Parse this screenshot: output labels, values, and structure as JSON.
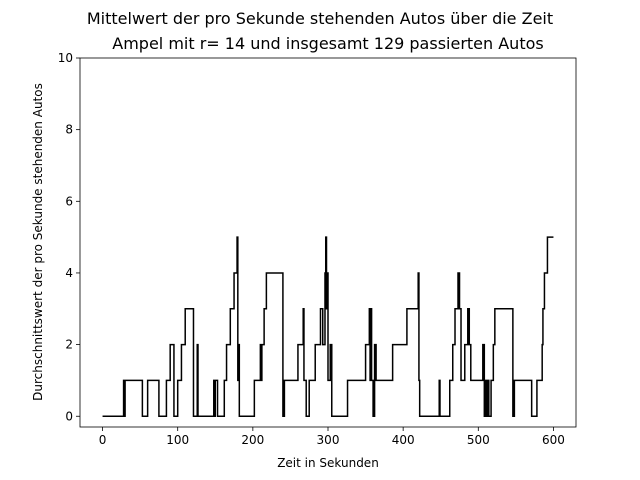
{
  "chart_data": {
    "type": "line",
    "title": "Mittelwert der pro Sekunde stehenden Autos über die Zeit",
    "subtitle": "Ampel mit r= 14 und insgesamt 129 passierten Autos",
    "xlabel": "Zeit in Sekunden",
    "ylabel": "Durchschnittswert der pro Sekunde stehenden Autos",
    "xlim": [
      -30,
      630
    ],
    "ylim": [
      -0.3,
      10
    ],
    "xticks": [
      0,
      100,
      200,
      300,
      400,
      500,
      600
    ],
    "yticks": [
      0,
      2,
      4,
      6,
      8,
      10
    ],
    "step": "post",
    "color": "#000000",
    "grid": false,
    "x": [
      0,
      27,
      28,
      29,
      30,
      53,
      60,
      75,
      85,
      90,
      95,
      100,
      105,
      110,
      120,
      121,
      126,
      127,
      128,
      147,
      148,
      149,
      150,
      153,
      162,
      165,
      170,
      175,
      179,
      180,
      181,
      182,
      184,
      186,
      200,
      202,
      210,
      211,
      212,
      215,
      218,
      222,
      240,
      242,
      245,
      260,
      267,
      268,
      271,
      275,
      283,
      290,
      293,
      296,
      297,
      298,
      299,
      300,
      302,
      303,
      305,
      325,
      326,
      330,
      350,
      355,
      356,
      357,
      358,
      360,
      362,
      364,
      366,
      368,
      386,
      392,
      405,
      420,
      421,
      422,
      447,
      448,
      449,
      462,
      466,
      469,
      473,
      475,
      477,
      482,
      486,
      488,
      490,
      504,
      506,
      508,
      510,
      511,
      512,
      513,
      514,
      517,
      520,
      522,
      530,
      546,
      548,
      550,
      568,
      571,
      578,
      585,
      586,
      588,
      592,
      597,
      600
    ],
    "values": [
      0,
      0,
      1,
      0,
      1,
      0,
      1,
      0,
      1,
      2,
      0,
      1,
      2,
      3,
      3,
      0,
      2,
      0,
      0,
      0,
      1,
      0,
      1,
      0,
      1,
      2,
      3,
      4,
      5,
      1,
      2,
      0,
      0,
      0,
      0,
      1,
      2,
      1,
      2,
      3,
      4,
      4,
      0,
      1,
      1,
      2,
      3,
      1,
      0,
      1,
      2,
      3,
      2,
      4,
      5,
      3,
      4,
      1,
      1,
      2,
      0,
      0,
      1,
      1,
      2,
      3,
      1,
      3,
      1,
      0,
      2,
      1,
      1,
      1,
      2,
      2,
      3,
      4,
      1,
      0,
      0,
      1,
      0,
      1,
      2,
      3,
      4,
      3,
      1,
      2,
      3,
      2,
      1,
      1,
      2,
      0,
      1,
      0,
      0,
      1,
      0,
      1,
      2,
      3,
      3,
      0,
      1,
      1,
      1,
      0,
      1,
      2,
      3,
      4,
      5,
      5,
      5
    ]
  }
}
